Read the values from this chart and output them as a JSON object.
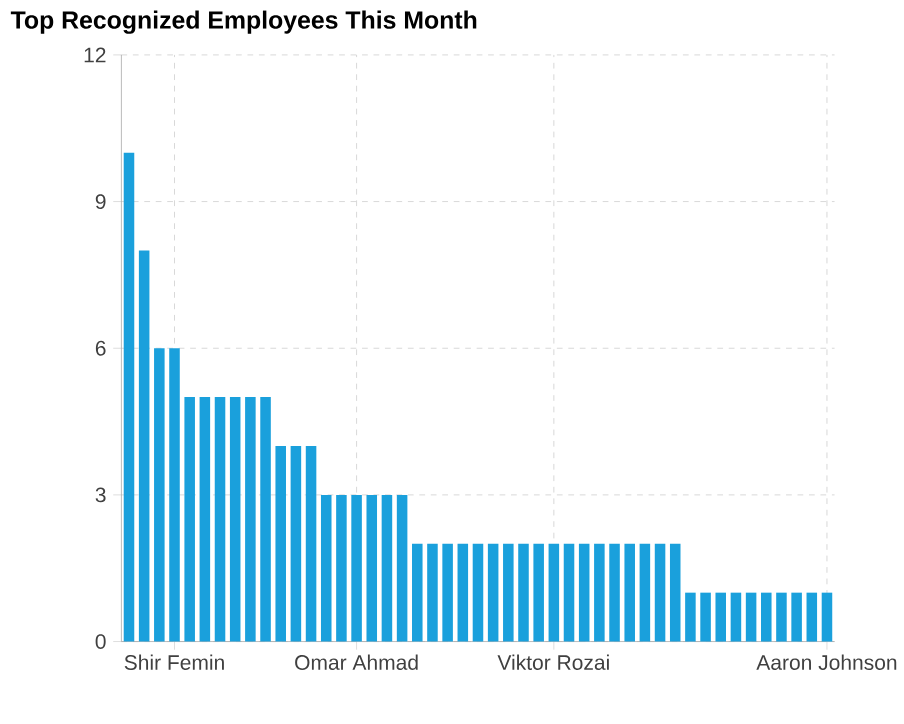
{
  "chart_data": {
    "type": "bar",
    "title": "Top Recognized Employees This Month",
    "categories": [
      null,
      null,
      null,
      "Shir Femin",
      null,
      null,
      null,
      null,
      null,
      null,
      null,
      null,
      null,
      null,
      null,
      "Omar Ahmad",
      null,
      null,
      null,
      null,
      null,
      null,
      null,
      null,
      null,
      null,
      null,
      null,
      "Viktor Rozai",
      null,
      null,
      null,
      null,
      null,
      null,
      null,
      null,
      null,
      null,
      null,
      null,
      null,
      null,
      null,
      null,
      null,
      "Aaron Johnson"
    ],
    "values": [
      10,
      8,
      6,
      6,
      5,
      5,
      5,
      5,
      5,
      5,
      4,
      4,
      4,
      3,
      3,
      3,
      3,
      3,
      3,
      2,
      2,
      2,
      2,
      2,
      2,
      2,
      2,
      2,
      2,
      2,
      2,
      2,
      2,
      2,
      2,
      2,
      2,
      1,
      1,
      1,
      1,
      1,
      1,
      1,
      1,
      1,
      1
    ],
    "color": "#1aa0dc",
    "ylim": [
      0,
      12
    ],
    "yticks": [
      0,
      3,
      6,
      9,
      12
    ],
    "grid": true
  }
}
